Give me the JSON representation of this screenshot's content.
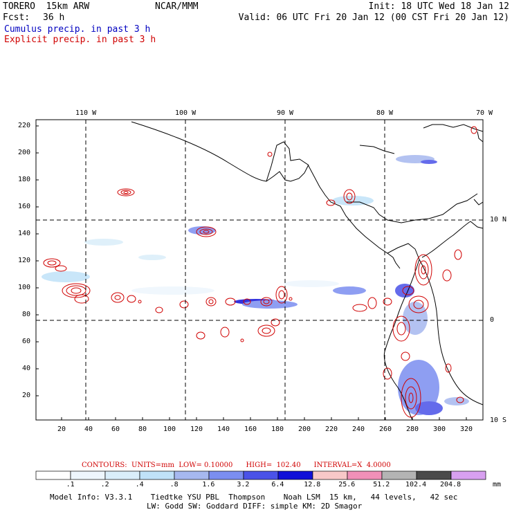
{
  "header": {
    "model": "TORERO  15km ARW",
    "org": "NCAR/MMM",
    "init": "Init: 18 UTC Wed 18 Jan 12",
    "fcst_label": "Fcst:",
    "fcst_value": "36 h",
    "valid": "Valid: 06 UTC Fri 20 Jan 12 (00 CST Fri 20 Jan 12)",
    "legend_cumulus": "Cumulus precip. in past 3 h",
    "legend_explicit": "Explicit precip. in past 3 h"
  },
  "colors": {
    "cumulus": "#0000c0",
    "explicit": "#d00000",
    "coast": "#000000"
  },
  "axes": {
    "lon_labels": [
      "110 W",
      "100 W",
      "90 W",
      "80 W",
      "70 W"
    ],
    "lat_labels": [
      "10 N",
      "0",
      "10 S"
    ],
    "y_ticks": [
      "220",
      "200",
      "180",
      "160",
      "140",
      "120",
      "100",
      "80",
      "60",
      "40",
      "20"
    ],
    "x_ticks": [
      "20",
      "40",
      "60",
      "80",
      "100",
      "120",
      "140",
      "160",
      "180",
      "200",
      "220",
      "240",
      "260",
      "280",
      "300",
      "320"
    ]
  },
  "contours_text": "CONTOURS:  UNITS=mm  LOW= 0.10000      HIGH=  102.40      INTERVAL=X  4.0000",
  "colorbar": {
    "labels": [
      ".1",
      ".2",
      ".4",
      ".8",
      "1.6",
      "3.2",
      "6.4",
      "12.8",
      "25.6",
      "51.2",
      "102.4",
      "204.8"
    ],
    "unit": "mm",
    "colors": [
      "#ffffff",
      "#eef6fd",
      "#daeefa",
      "#c0e2f8",
      "#a6b8ef",
      "#7b8ef0",
      "#4a52e8",
      "#1010d8",
      "#f8c8c8",
      "#f090b8",
      "#b4b4b4",
      "#4a4a4a",
      "#d8a0f0"
    ]
  },
  "footer": {
    "line1": "Model Info: V3.3.1    Tiedtke YSU PBL  Thompson    Noah LSM  15 km,   44 levels,   42 sec",
    "line2": "LW: Godd SW: Goddard DIFF: simple KM: 2D Smagor"
  }
}
